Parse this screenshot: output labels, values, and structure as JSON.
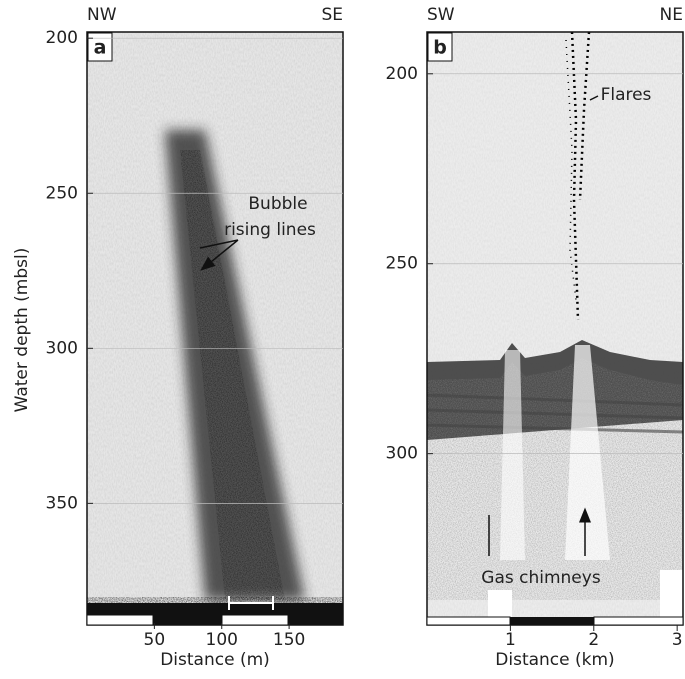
{
  "chart_data": [
    {
      "type": "echogram",
      "panel": "a",
      "left_label": "NW",
      "right_label": "SE",
      "xlabel": "Distance (m)",
      "ylabel": "Water depth (mbsl)",
      "xlim": [
        0,
        190
      ],
      "ylim": [
        198,
        386
      ],
      "y_inverted": true,
      "xticks": [
        50,
        100,
        150
      ],
      "yticks": [
        200,
        250,
        300,
        350
      ],
      "grid": true,
      "annotations": [
        "Bubble",
        "rising lines"
      ]
    },
    {
      "type": "echogram",
      "panel": "b",
      "left_label": "SW",
      "right_label": "NE",
      "xlabel": "Distance (km)",
      "xlim": [
        0,
        3.07
      ],
      "ylim": [
        189,
        343
      ],
      "y_inverted": true,
      "xticks": [
        1,
        2,
        3
      ],
      "yticks": [
        200,
        250,
        300
      ],
      "grid": true,
      "annotations": [
        "Flares",
        "Gas chimneys"
      ]
    }
  ]
}
